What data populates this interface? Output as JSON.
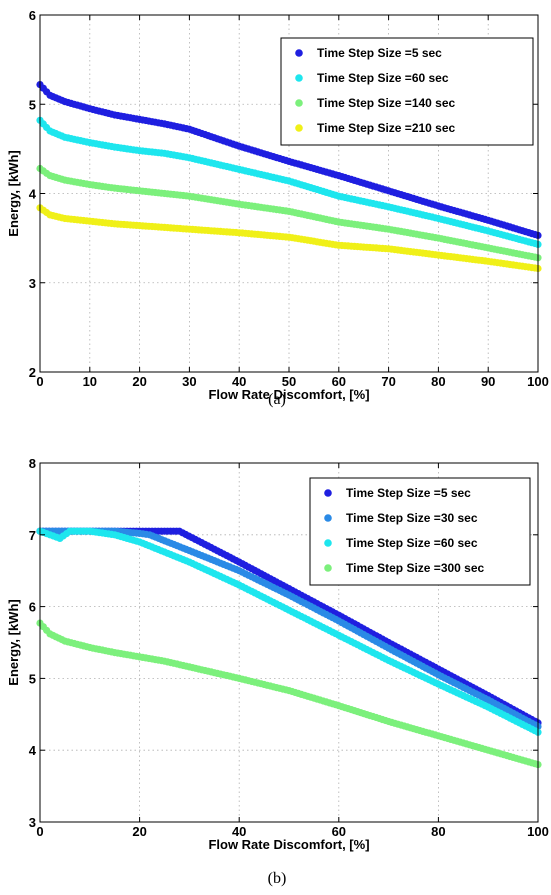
{
  "chart_data": [
    {
      "type": "scatter",
      "caption": "(a)",
      "xlabel": "Flow Rate Discomfort, [%]",
      "ylabel": "Energy, [kWh]",
      "xlim": [
        0,
        100
      ],
      "ylim": [
        2,
        6
      ],
      "xticks": [
        0,
        10,
        20,
        30,
        40,
        50,
        60,
        70,
        80,
        90,
        100
      ],
      "yticks": [
        2,
        3,
        4,
        5,
        6
      ],
      "grid": true,
      "legend_position": "top-right",
      "series": [
        {
          "name": "Time Step Size =5 sec",
          "color": "#1f1fe0",
          "x": [
            0,
            2,
            5,
            10,
            15,
            20,
            25,
            30,
            40,
            50,
            60,
            70,
            80,
            90,
            100
          ],
          "y": [
            5.22,
            5.1,
            5.03,
            4.95,
            4.88,
            4.83,
            4.78,
            4.72,
            4.53,
            4.36,
            4.2,
            4.03,
            3.86,
            3.7,
            3.53
          ]
        },
        {
          "name": "Time Step Size =60 sec",
          "color": "#1ee6ee",
          "x": [
            0,
            2,
            5,
            10,
            15,
            20,
            25,
            30,
            40,
            50,
            60,
            70,
            80,
            90,
            100
          ],
          "y": [
            4.82,
            4.7,
            4.63,
            4.57,
            4.52,
            4.48,
            4.45,
            4.4,
            4.27,
            4.14,
            3.97,
            3.85,
            3.72,
            3.58,
            3.43
          ]
        },
        {
          "name": "Time Step Size =140 sec",
          "color": "#7cf07c",
          "x": [
            0,
            2,
            5,
            10,
            15,
            20,
            25,
            30,
            40,
            50,
            60,
            70,
            80,
            90,
            100
          ],
          "y": [
            4.28,
            4.2,
            4.15,
            4.1,
            4.06,
            4.03,
            4.0,
            3.97,
            3.88,
            3.8,
            3.68,
            3.6,
            3.5,
            3.39,
            3.28
          ]
        },
        {
          "name": "Time Step Size =210 sec",
          "color": "#f0f018",
          "x": [
            0,
            2,
            5,
            10,
            15,
            20,
            25,
            30,
            40,
            50,
            60,
            70,
            80,
            90,
            100
          ],
          "y": [
            3.84,
            3.76,
            3.72,
            3.69,
            3.66,
            3.64,
            3.62,
            3.6,
            3.56,
            3.51,
            3.42,
            3.38,
            3.31,
            3.24,
            3.16
          ]
        }
      ]
    },
    {
      "type": "scatter",
      "caption": "(b)",
      "xlabel": "Flow Rate Discomfort, [%]",
      "ylabel": "Energy, [kWh]",
      "xlim": [
        0,
        100
      ],
      "ylim": [
        3,
        8
      ],
      "xticks": [
        0,
        20,
        40,
        60,
        80,
        100
      ],
      "yticks": [
        3,
        4,
        5,
        6,
        7,
        8
      ],
      "grid": true,
      "legend_position": "top-right",
      "series": [
        {
          "name": "Time Step Size =5 sec",
          "color": "#1f1fe0",
          "x": [
            0,
            5,
            10,
            15,
            20,
            25,
            28,
            35,
            40,
            50,
            60,
            70,
            80,
            90,
            100
          ],
          "y": [
            7.05,
            7.05,
            7.05,
            7.05,
            7.05,
            7.05,
            7.05,
            6.8,
            6.62,
            6.25,
            5.88,
            5.5,
            5.13,
            4.76,
            4.38
          ]
        },
        {
          "name": "Time Step Size =30 sec",
          "color": "#2a8ae6",
          "x": [
            0,
            5,
            10,
            15,
            20,
            22,
            30,
            40,
            50,
            60,
            70,
            80,
            90,
            100
          ],
          "y": [
            7.05,
            7.05,
            7.05,
            7.05,
            7.02,
            7.0,
            6.78,
            6.5,
            6.16,
            5.8,
            5.42,
            5.05,
            4.7,
            4.33
          ]
        },
        {
          "name": "Time Step Size =60 sec",
          "color": "#1ee6ee",
          "x": [
            0,
            2,
            4,
            6,
            10,
            15,
            20,
            30,
            40,
            50,
            60,
            70,
            80,
            90,
            100
          ],
          "y": [
            7.05,
            7.0,
            6.95,
            7.05,
            7.05,
            7.0,
            6.9,
            6.62,
            6.3,
            5.95,
            5.6,
            5.25,
            4.92,
            4.6,
            4.25
          ]
        },
        {
          "name": "Time Step Size =300 sec",
          "color": "#7cf07c",
          "x": [
            0,
            2,
            5,
            10,
            15,
            20,
            25,
            30,
            40,
            50,
            60,
            70,
            80,
            90,
            100
          ],
          "y": [
            5.77,
            5.62,
            5.52,
            5.43,
            5.36,
            5.3,
            5.24,
            5.16,
            5.0,
            4.83,
            4.62,
            4.4,
            4.2,
            4.0,
            3.8
          ]
        }
      ]
    }
  ]
}
